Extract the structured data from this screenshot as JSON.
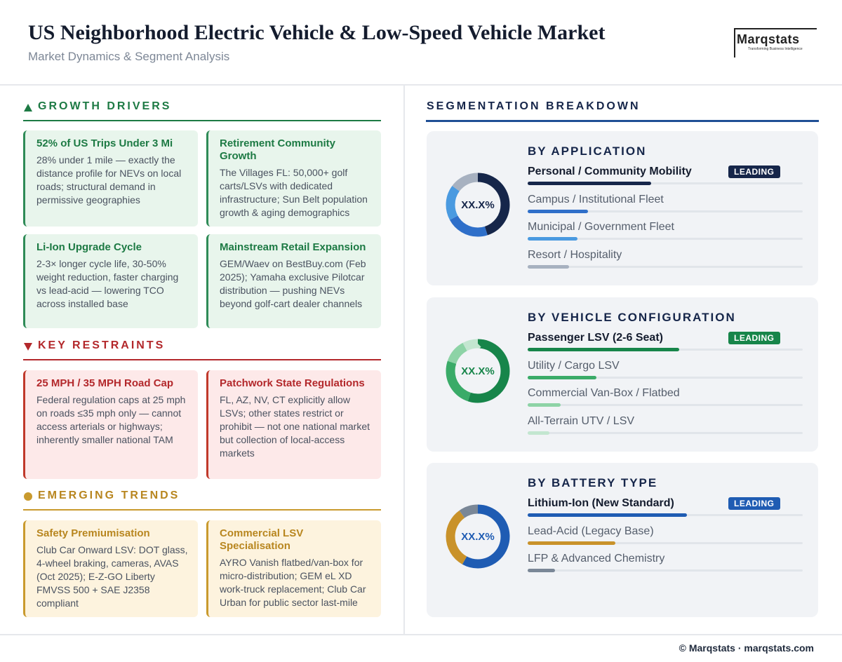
{
  "header": {
    "title": "US Neighborhood Electric Vehicle & Low-Speed Vehicle Market",
    "subtitle": "Market Dynamics & Segment Analysis",
    "logo": "Marqstats",
    "logo_tagline": "Transforming Business Intelligence"
  },
  "sections": [
    {
      "heading": "GROWTH DRIVERS",
      "cards": [
        {
          "title": "52% of US Trips Under 3 Mi",
          "text": "28% under 1 mile — exactly the distance profile for NEVs on local roads; structural demand in permissive geographies"
        },
        {
          "title": "Retirement Community Growth",
          "text": "The Villages FL: 50,000+ golf carts/LSVs with dedicated infrastructure; Sun Belt population growth & aging demographics"
        },
        {
          "title": "Li-Ion Upgrade Cycle",
          "text": "2-3× longer cycle life, 30-50% weight reduction, faster charging vs lead-acid — lowering TCO across installed base"
        },
        {
          "title": "Mainstream Retail Expansion",
          "text": "GEM/Waev on BestBuy.com (Feb 2025); Yamaha exclusive Pilotcar distribution — pushing NEVs beyond golf-cart dealer channels"
        }
      ]
    },
    {
      "heading": "KEY RESTRAINTS",
      "cards": [
        {
          "title": "25 MPH / 35 MPH Road Cap",
          "text": "Federal regulation caps at 25 mph on roads ≤35 mph only — cannot access arterials or highways; inherently smaller national TAM"
        },
        {
          "title": "Patchwork State Regulations",
          "text": "FL, AZ, NV, CT explicitly allow LSVs; other states restrict or prohibit — not one national market but collection of local-access markets"
        }
      ]
    },
    {
      "heading": "EMERGING TRENDS",
      "cards": [
        {
          "title": "Safety Premiumisation",
          "text": "Club Car Onward LSV: DOT glass, 4-wheel braking, cameras, AVAS (Oct 2025); E-Z-GO Liberty FMVSS 500 + SAE J2358 compliant"
        },
        {
          "title": "Commercial LSV Specialisation",
          "text": "AYRO Vanish flatbed/van-box for micro-distribution; GEM eL XD work-truck replacement; Club Car Urban for public sector last-mile"
        }
      ]
    }
  ],
  "segmentation": {
    "heading": "SEGMENTATION BREAKDOWN",
    "panels": [
      {
        "title": "BY APPLICATION",
        "center_label": "XX.X%",
        "leading_label": "LEADING",
        "items": [
          {
            "name": "Personal / Community Mobility",
            "value": 45,
            "color": "#16264a"
          },
          {
            "name": "Campus / Institutional Fleet",
            "value": 22,
            "color": "#2f6fc9"
          },
          {
            "name": "Municipal / Government Fleet",
            "value": 18,
            "color": "#4a9ae0"
          },
          {
            "name": "Resort / Hospitality",
            "value": 15,
            "color": "#a7b1c0"
          }
        ]
      },
      {
        "title": "BY VEHICLE CONFIGURATION",
        "center_label": "XX.X%",
        "leading_label": "LEADING",
        "items": [
          {
            "name": "Passenger LSV (2-6 Seat)",
            "value": 55,
            "color": "#17854a"
          },
          {
            "name": "Utility / Cargo LSV",
            "value": 25,
            "color": "#3aab68"
          },
          {
            "name": "Commercial Van-Box / Flatbed",
            "value": 12,
            "color": "#8dd3a6"
          },
          {
            "name": "All-Terrain UTV / LSV",
            "value": 8,
            "color": "#c3e6d0"
          }
        ]
      },
      {
        "title": "BY BATTERY TYPE",
        "center_label": "XX.X%",
        "leading_label": "LEADING",
        "items": [
          {
            "name": "Lithium-Ion (New Standard)",
            "value": 58,
            "color": "#1f5cb3"
          },
          {
            "name": "Lead-Acid (Legacy Base)",
            "value": 32,
            "color": "#c9922a"
          },
          {
            "name": "LFP & Advanced Chemistry",
            "value": 10,
            "color": "#7a8797"
          }
        ]
      }
    ]
  },
  "footer": "© Marqstats · marqstats.com"
}
